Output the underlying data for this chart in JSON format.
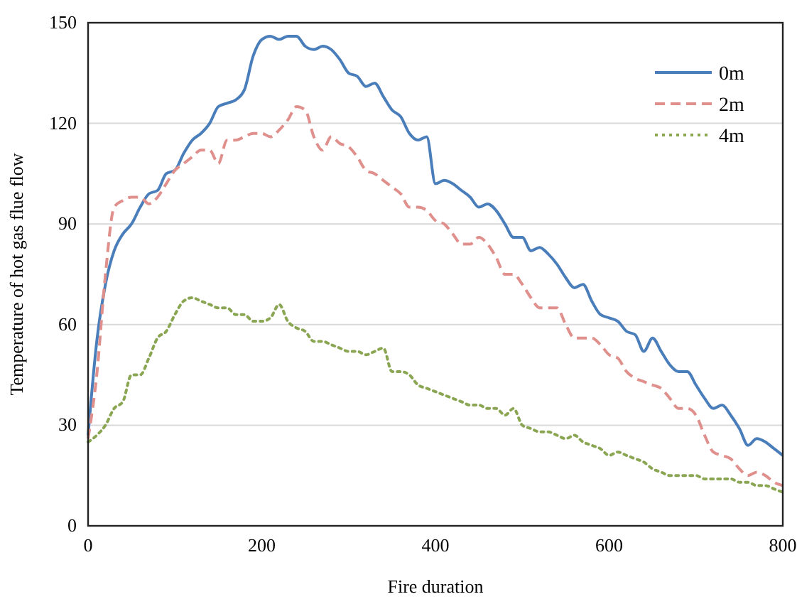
{
  "chart_data": {
    "type": "line",
    "xlabel": "Fire duration",
    "ylabel": "Temperature of hot gas flue flow",
    "x": [
      0,
      10,
      20,
      30,
      40,
      50,
      60,
      70,
      80,
      90,
      100,
      110,
      120,
      130,
      140,
      150,
      160,
      170,
      180,
      190,
      200,
      210,
      220,
      230,
      240,
      250,
      260,
      270,
      280,
      290,
      300,
      310,
      320,
      330,
      340,
      350,
      360,
      370,
      380,
      390,
      400,
      410,
      420,
      430,
      440,
      450,
      460,
      470,
      480,
      490,
      500,
      510,
      520,
      530,
      540,
      550,
      560,
      570,
      580,
      590,
      600,
      610,
      620,
      630,
      640,
      650,
      660,
      670,
      680,
      690,
      700,
      710,
      720,
      730,
      740,
      750,
      760,
      770,
      780,
      790,
      800
    ],
    "series": [
      {
        "name": "0m",
        "color": "#4a7ebb",
        "line_style": "solid",
        "values": [
          27,
          55,
          72,
          82,
          87,
          90,
          95,
          99,
          100,
          105,
          106,
          111,
          115,
          117,
          120,
          125,
          126,
          127,
          130,
          140,
          145,
          146,
          145,
          146,
          146,
          143,
          142,
          143,
          142,
          139,
          135,
          134,
          131,
          132,
          128,
          124,
          122,
          117,
          115,
          116,
          102,
          103,
          102,
          100,
          98,
          95,
          96,
          94,
          90,
          86,
          86,
          82,
          83,
          81,
          78,
          74,
          71,
          72,
          67,
          63,
          62,
          61,
          58,
          57,
          52,
          56,
          52,
          48,
          46,
          46,
          42,
          38,
          35,
          36,
          33,
          29,
          24,
          26,
          25,
          23,
          21
        ]
      },
      {
        "name": "2m",
        "color": "#e0908c",
        "line_style": "dashed",
        "values": [
          26,
          45,
          75,
          95,
          97,
          98,
          98,
          96,
          98,
          102,
          106,
          108,
          110,
          112,
          112,
          108,
          115,
          115,
          116,
          117,
          117,
          116,
          118,
          121,
          125,
          124,
          116,
          112,
          116,
          114,
          113,
          110,
          106,
          105,
          103,
          101,
          99,
          95,
          95,
          94,
          91,
          90,
          87,
          84,
          84,
          86,
          84,
          80,
          75,
          75,
          72,
          68,
          65,
          65,
          65,
          60,
          56,
          56,
          56,
          54,
          51,
          50,
          46,
          44,
          43,
          42,
          41,
          38,
          35,
          35,
          33,
          27,
          22,
          21,
          20,
          17,
          15,
          16,
          15,
          13,
          12
        ]
      },
      {
        "name": "4m",
        "color": "#8aa652",
        "line_style": "dotted",
        "values": [
          25,
          27,
          30,
          35,
          37,
          45,
          45,
          50,
          56,
          58,
          63,
          67,
          68,
          67,
          66,
          65,
          65,
          63,
          63,
          61,
          61,
          62,
          66,
          61,
          59,
          58,
          55,
          55,
          54,
          53,
          52,
          52,
          51,
          52,
          53,
          46,
          46,
          45,
          42,
          41,
          40,
          39,
          38,
          37,
          36,
          36,
          35,
          35,
          33,
          35,
          30,
          29,
          28,
          28,
          27,
          26,
          27,
          25,
          24,
          23,
          21,
          22,
          21,
          20,
          19,
          17,
          16,
          15,
          15,
          15,
          15,
          14,
          14,
          14,
          14,
          13,
          13,
          12,
          12,
          11,
          10
        ]
      }
    ],
    "xlim": [
      0,
      800
    ],
    "xticks": [
      0,
      200,
      400,
      600,
      800
    ],
    "ylim": [
      0,
      150
    ],
    "yticks": [
      0,
      30,
      60,
      90,
      120,
      150
    ],
    "grid": "y",
    "legend": "top right"
  }
}
